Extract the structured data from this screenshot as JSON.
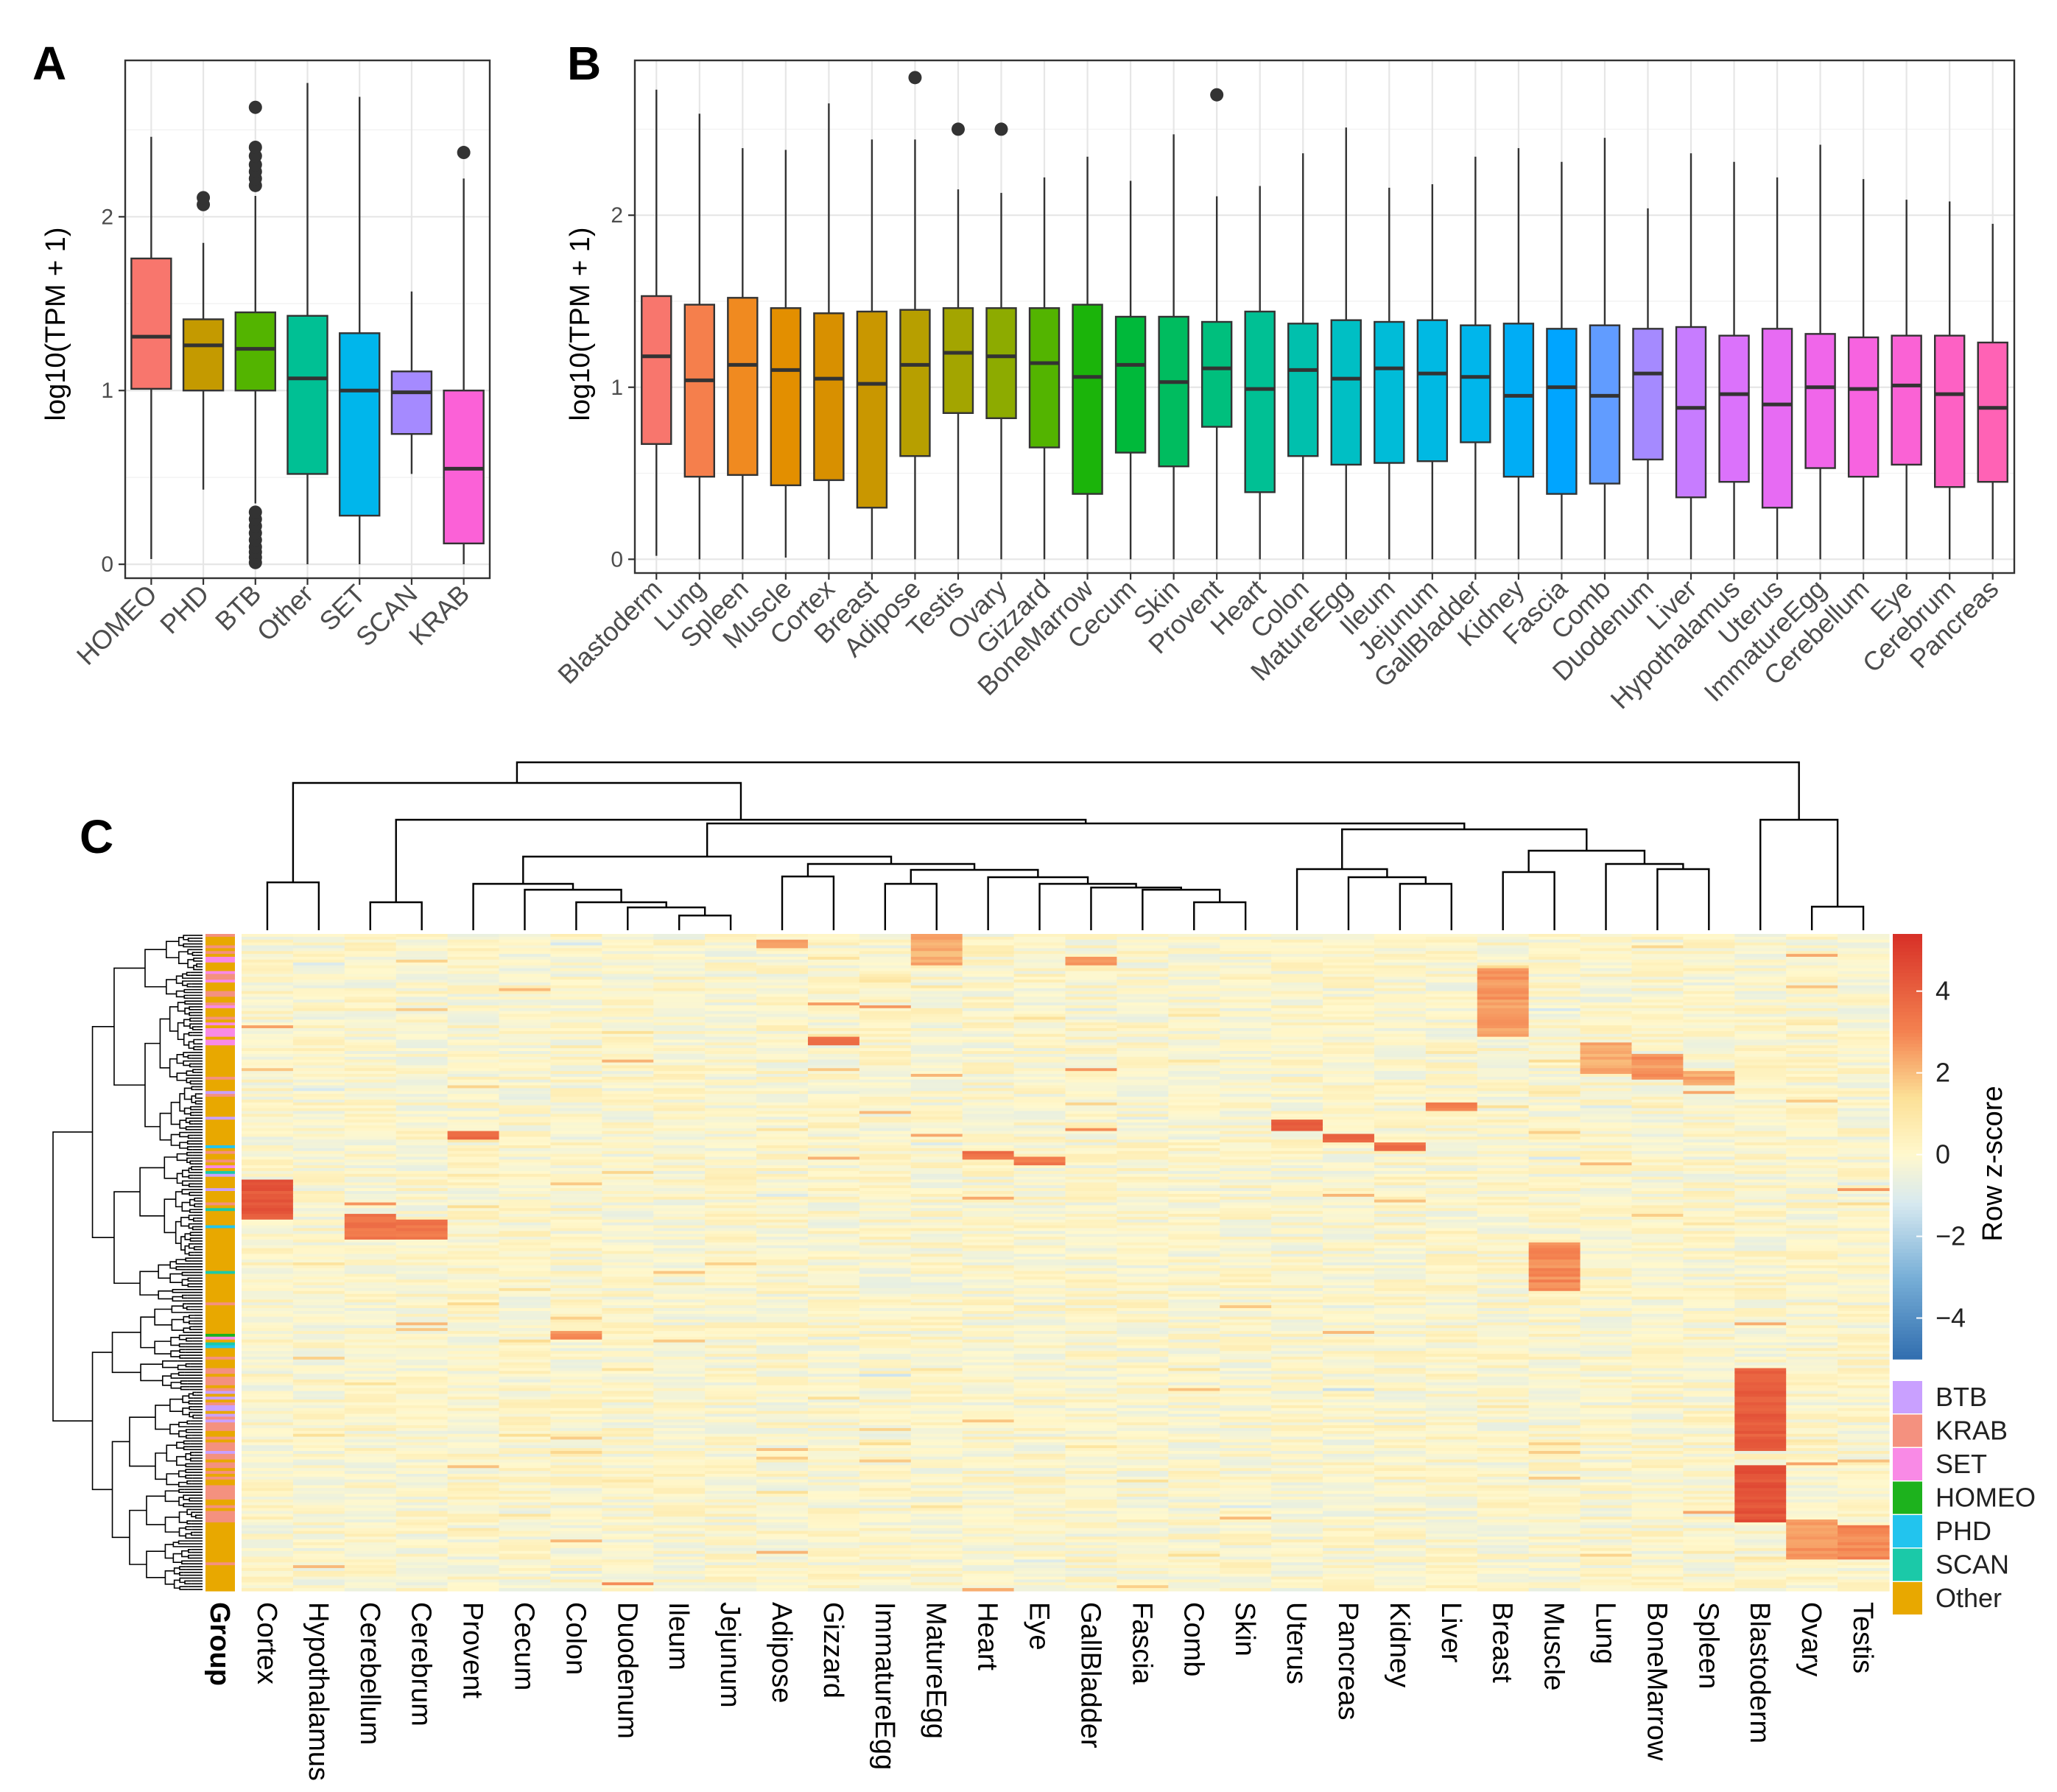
{
  "colors": {
    "homeo": "#F8766D",
    "phd": "#C49A00",
    "btb": "#53B400",
    "other": "#00C094",
    "set": "#00B6EB",
    "scan": "#A58AFF",
    "krab": "#FB61D7",
    "group_btb": "#C9A0FF",
    "group_krab": "#F4917F",
    "group_set": "#F98AE6",
    "group_homeo": "#1DB21D",
    "group_phd": "#22C4EE",
    "group_scan": "#1BC9A8",
    "group_other": "#E8A800"
  },
  "chart_data": [
    {
      "panel": "A",
      "type": "boxplot",
      "ylabel": "log10(TPM + 1)",
      "ylim": [
        -0.08,
        2.9
      ],
      "yticks": [
        "0",
        "1",
        "2"
      ],
      "categories": [
        "HOMEO",
        "PHD",
        "BTB",
        "Other",
        "SET",
        "SCAN",
        "KRAB"
      ],
      "boxes": [
        {
          "name": "HOMEO",
          "lower_whisker": 0.03,
          "q1": 1.01,
          "median": 1.31,
          "q3": 1.76,
          "upper_whisker": 2.46,
          "outliers": [],
          "color": "#F8766D"
        },
        {
          "name": "PHD",
          "lower_whisker": 0.43,
          "q1": 1.0,
          "median": 1.26,
          "q3": 1.41,
          "upper_whisker": 1.85,
          "outliers": [
            2.07,
            2.11
          ],
          "color": "#C49A00"
        },
        {
          "name": "BTB",
          "lower_whisker": 0.35,
          "q1": 1.0,
          "median": 1.24,
          "q3": 1.45,
          "upper_whisker": 2.12,
          "outliers": [
            0.01,
            0.04,
            0.07,
            0.1,
            0.14,
            0.18,
            0.22,
            0.26,
            0.3,
            2.18,
            2.22,
            2.26,
            2.3,
            2.35,
            2.4,
            2.63
          ],
          "color": "#53B400"
        },
        {
          "name": "Other",
          "lower_whisker": 0.0,
          "q1": 0.52,
          "median": 1.07,
          "q3": 1.43,
          "upper_whisker": 2.77,
          "outliers": [],
          "color": "#00C094"
        },
        {
          "name": "SET",
          "lower_whisker": 0.0,
          "q1": 0.28,
          "median": 1.0,
          "q3": 1.33,
          "upper_whisker": 2.69,
          "outliers": [],
          "color": "#00B6EB"
        },
        {
          "name": "SCAN",
          "lower_whisker": 0.52,
          "q1": 0.75,
          "median": 0.99,
          "q3": 1.11,
          "upper_whisker": 1.57,
          "outliers": [],
          "color": "#A58AFF"
        },
        {
          "name": "KRAB",
          "lower_whisker": 0.0,
          "q1": 0.12,
          "median": 0.55,
          "q3": 1.0,
          "upper_whisker": 2.22,
          "outliers": [
            2.37
          ],
          "color": "#FB61D7"
        }
      ]
    },
    {
      "panel": "B",
      "type": "boxplot",
      "ylabel": "log10(TPM + 1)",
      "ylim": [
        -0.08,
        2.9
      ],
      "yticks": [
        "0",
        "1",
        "2"
      ],
      "categories": [
        "Blastoderm",
        "Lung",
        "Spleen",
        "Muscle",
        "Cortex",
        "Breast",
        "Adipose",
        "Testis",
        "Ovary",
        "Gizzard",
        "BoneMarrow",
        "Cecum",
        "Skin",
        "Provent",
        "Heart",
        "Colon",
        "MatureEgg",
        "Ileum",
        "Jejunum",
        "GallBladder",
        "Kidney",
        "Fascia",
        "Comb",
        "Duodenum",
        "Liver",
        "Hypothalamus",
        "Uterus",
        "ImmatureEgg",
        "Cerebellum",
        "Eye",
        "Cerebrum",
        "Pancreas"
      ],
      "boxes": [
        {
          "name": "Blastoderm",
          "lower_whisker": 0.02,
          "q1": 0.67,
          "median": 1.18,
          "q3": 1.53,
          "upper_whisker": 2.73,
          "outliers": [],
          "color": "#F8766D"
        },
        {
          "name": "Lung",
          "lower_whisker": 0.0,
          "q1": 0.48,
          "median": 1.04,
          "q3": 1.48,
          "upper_whisker": 2.59,
          "outliers": [],
          "color": "#F57F4C"
        },
        {
          "name": "Spleen",
          "lower_whisker": 0.0,
          "q1": 0.49,
          "median": 1.13,
          "q3": 1.52,
          "upper_whisker": 2.39,
          "outliers": [],
          "color": "#F08A20"
        },
        {
          "name": "Muscle",
          "lower_whisker": 0.01,
          "q1": 0.43,
          "median": 1.1,
          "q3": 1.46,
          "upper_whisker": 2.38,
          "outliers": [],
          "color": "#E38F00"
        },
        {
          "name": "Cortex",
          "lower_whisker": 0.0,
          "q1": 0.46,
          "median": 1.05,
          "q3": 1.43,
          "upper_whisker": 2.65,
          "outliers": [],
          "color": "#D89000"
        },
        {
          "name": "Breast",
          "lower_whisker": 0.0,
          "q1": 0.3,
          "median": 1.02,
          "q3": 1.44,
          "upper_whisker": 2.44,
          "outliers": [],
          "color": "#C99700"
        },
        {
          "name": "Adipose",
          "lower_whisker": 0.0,
          "q1": 0.6,
          "median": 1.13,
          "q3": 1.45,
          "upper_whisker": 2.44,
          "outliers": [
            2.8
          ],
          "color": "#B79F00"
        },
        {
          "name": "Testis",
          "lower_whisker": 0.0,
          "q1": 0.85,
          "median": 1.2,
          "q3": 1.46,
          "upper_whisker": 2.15,
          "outliers": [
            2.5
          ],
          "color": "#A3A500"
        },
        {
          "name": "Ovary",
          "lower_whisker": 0.0,
          "q1": 0.82,
          "median": 1.18,
          "q3": 1.46,
          "upper_whisker": 2.13,
          "outliers": [
            2.5
          ],
          "color": "#8DAB00"
        },
        {
          "name": "Gizzard",
          "lower_whisker": 0.0,
          "q1": 0.65,
          "median": 1.14,
          "q3": 1.46,
          "upper_whisker": 2.22,
          "outliers": [],
          "color": "#53B400"
        },
        {
          "name": "BoneMarrow",
          "lower_whisker": 0.0,
          "q1": 0.38,
          "median": 1.06,
          "q3": 1.48,
          "upper_whisker": 2.34,
          "outliers": [],
          "color": "#1BB40A"
        },
        {
          "name": "Cecum",
          "lower_whisker": 0.0,
          "q1": 0.62,
          "median": 1.13,
          "q3": 1.41,
          "upper_whisker": 2.2,
          "outliers": [],
          "color": "#00B93A"
        },
        {
          "name": "Skin",
          "lower_whisker": 0.0,
          "q1": 0.54,
          "median": 1.03,
          "q3": 1.41,
          "upper_whisker": 2.47,
          "outliers": [],
          "color": "#00BC5F"
        },
        {
          "name": "Provent",
          "lower_whisker": 0.0,
          "q1": 0.77,
          "median": 1.11,
          "q3": 1.38,
          "upper_whisker": 2.11,
          "outliers": [
            2.7
          ],
          "color": "#00BF7D"
        },
        {
          "name": "Heart",
          "lower_whisker": 0.0,
          "q1": 0.39,
          "median": 0.99,
          "q3": 1.44,
          "upper_whisker": 2.17,
          "outliers": [],
          "color": "#00C094"
        },
        {
          "name": "Colon",
          "lower_whisker": 0.0,
          "q1": 0.6,
          "median": 1.1,
          "q3": 1.37,
          "upper_whisker": 2.36,
          "outliers": [],
          "color": "#00C0AD"
        },
        {
          "name": "MatureEgg",
          "lower_whisker": 0.0,
          "q1": 0.55,
          "median": 1.05,
          "q3": 1.39,
          "upper_whisker": 2.51,
          "outliers": [],
          "color": "#00BFC4"
        },
        {
          "name": "Ileum",
          "lower_whisker": 0.0,
          "q1": 0.56,
          "median": 1.11,
          "q3": 1.38,
          "upper_whisker": 2.16,
          "outliers": [],
          "color": "#00BCD8"
        },
        {
          "name": "Jejunum",
          "lower_whisker": 0.0,
          "q1": 0.57,
          "median": 1.08,
          "q3": 1.39,
          "upper_whisker": 2.18,
          "outliers": [],
          "color": "#00B9E3"
        },
        {
          "name": "GallBladder",
          "lower_whisker": 0.0,
          "q1": 0.68,
          "median": 1.06,
          "q3": 1.36,
          "upper_whisker": 2.34,
          "outliers": [],
          "color": "#00B6EB"
        },
        {
          "name": "Kidney",
          "lower_whisker": 0.0,
          "q1": 0.48,
          "median": 0.95,
          "q3": 1.37,
          "upper_whisker": 2.39,
          "outliers": [],
          "color": "#00ADF5"
        },
        {
          "name": "Fascia",
          "lower_whisker": 0.0,
          "q1": 0.38,
          "median": 1.0,
          "q3": 1.34,
          "upper_whisker": 2.31,
          "outliers": [],
          "color": "#00A5FF"
        },
        {
          "name": "Comb",
          "lower_whisker": 0.0,
          "q1": 0.44,
          "median": 0.95,
          "q3": 1.36,
          "upper_whisker": 2.45,
          "outliers": [],
          "color": "#619CFF"
        },
        {
          "name": "Duodenum",
          "lower_whisker": 0.0,
          "q1": 0.58,
          "median": 1.08,
          "q3": 1.34,
          "upper_whisker": 2.04,
          "outliers": [],
          "color": "#A58AFF"
        },
        {
          "name": "Liver",
          "lower_whisker": 0.0,
          "q1": 0.36,
          "median": 0.88,
          "q3": 1.35,
          "upper_whisker": 2.36,
          "outliers": [],
          "color": "#C77CFF"
        },
        {
          "name": "Hypothalamus",
          "lower_whisker": 0.0,
          "q1": 0.45,
          "median": 0.96,
          "q3": 1.3,
          "upper_whisker": 2.31,
          "outliers": [],
          "color": "#DB72FB"
        },
        {
          "name": "Uterus",
          "lower_whisker": 0.0,
          "q1": 0.3,
          "median": 0.9,
          "q3": 1.34,
          "upper_whisker": 2.22,
          "outliers": [],
          "color": "#E76BF3"
        },
        {
          "name": "ImmatureEgg",
          "lower_whisker": 0.0,
          "q1": 0.53,
          "median": 1.0,
          "q3": 1.31,
          "upper_whisker": 2.41,
          "outliers": [],
          "color": "#F066EA"
        },
        {
          "name": "Cerebellum",
          "lower_whisker": 0.0,
          "q1": 0.48,
          "median": 0.99,
          "q3": 1.29,
          "upper_whisker": 2.21,
          "outliers": [],
          "color": "#F763E0"
        },
        {
          "name": "Eye",
          "lower_whisker": 0.0,
          "q1": 0.55,
          "median": 1.01,
          "q3": 1.3,
          "upper_whisker": 2.09,
          "outliers": [],
          "color": "#FA62D5"
        },
        {
          "name": "Cerebrum",
          "lower_whisker": 0.0,
          "q1": 0.42,
          "median": 0.96,
          "q3": 1.3,
          "upper_whisker": 2.08,
          "outliers": [],
          "color": "#FD61C4"
        },
        {
          "name": "Pancreas",
          "lower_whisker": 0.0,
          "q1": 0.45,
          "median": 0.88,
          "q3": 1.26,
          "upper_whisker": 1.95,
          "outliers": [],
          "color": "#FF62B5"
        }
      ]
    },
    {
      "panel": "C",
      "type": "heatmap",
      "columns": [
        "Cortex",
        "Hypothalamus",
        "Cerebellum",
        "Cerebrum",
        "Provent",
        "Cecum",
        "Colon",
        "Duodenum",
        "Ileum",
        "Jejunum",
        "Adipose",
        "Gizzard",
        "ImmatureEgg",
        "MatureEgg",
        "Heart",
        "Eye",
        "GallBladder",
        "Fascia",
        "Comb",
        "Skin",
        "Uterus",
        "Pancreas",
        "Kidney",
        "Liver",
        "Breast",
        "Muscle",
        "Lung",
        "BoneMarrow",
        "Spleen",
        "Blastoderm",
        "Ovary",
        "Testis"
      ],
      "row_annotation_label": "Group",
      "colorbar": {
        "title": "Row z-score",
        "ticks": [
          "4",
          "2",
          "0",
          "−2",
          "−4"
        ],
        "range": [
          -5,
          5.4
        ]
      },
      "group_legend": [
        "BTB",
        "KRAB",
        "SET",
        "HOMEO",
        "PHD",
        "SCAN",
        "Other"
      ],
      "row_dendrogram": true,
      "column_dendrogram": true
    }
  ],
  "labels": {
    "panel_a": "A",
    "panel_b": "B",
    "panel_c": "C",
    "ylabel": "log10(TPM + 1)",
    "group_label": "Group",
    "colorbar_title": "Row z-score"
  }
}
